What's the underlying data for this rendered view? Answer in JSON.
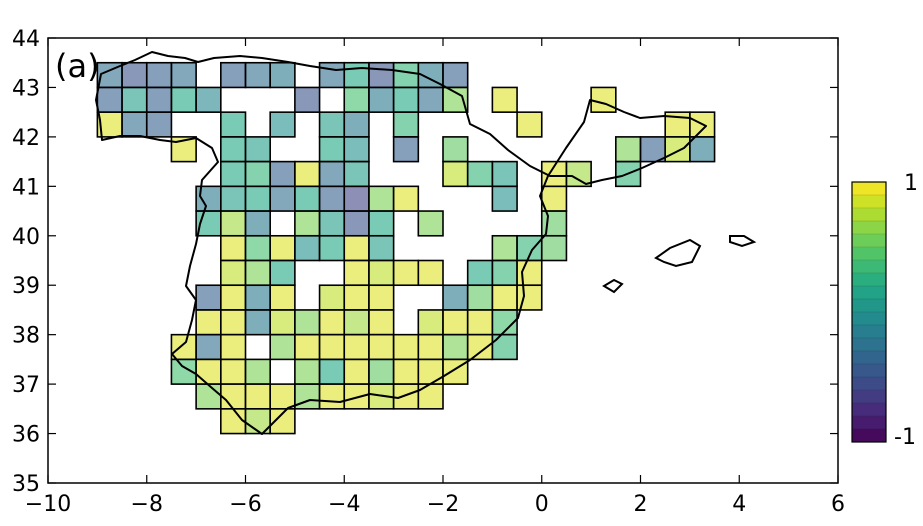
{
  "panel_label": "(a)",
  "chart_data": {
    "type": "heatmap",
    "title": "",
    "xlabel": "",
    "ylabel": "",
    "xlim": [
      -10,
      6
    ],
    "ylim": [
      35,
      44
    ],
    "xticks": [
      -10,
      -8,
      -6,
      -4,
      -2,
      0,
      2,
      4,
      6
    ],
    "xtick_labels": [
      "−10",
      "−8",
      "−6",
      "−4",
      "−2",
      "0",
      "2",
      "4",
      "6"
    ],
    "yticks": [
      35,
      36,
      37,
      38,
      39,
      40,
      41,
      42,
      43,
      44
    ],
    "ytick_labels": [
      "35",
      "36",
      "37",
      "38",
      "39",
      "40",
      "41",
      "42",
      "43",
      "44"
    ],
    "cell_size_deg": 0.5,
    "colormap": [
      "#440154",
      "#482475",
      "#414487",
      "#355f8d",
      "#2a788e",
      "#21918c",
      "#22a884",
      "#44bf70",
      "#7ad151",
      "#bddf26",
      "#fde725"
    ],
    "colorbar": {
      "vmin": -1,
      "vmax": 1,
      "tick_labels": [
        "-1",
        "1"
      ],
      "levels": 20
    },
    "grid": false,
    "cells": [
      {
        "lon": -8.75,
        "lat": 43.25,
        "value": -0.3
      },
      {
        "lon": -8.25,
        "lat": 43.25,
        "value": -0.5
      },
      {
        "lon": -7.75,
        "lat": 43.25,
        "value": -0.4
      },
      {
        "lon": -7.25,
        "lat": 43.25,
        "value": -0.3
      },
      {
        "lon": -6.25,
        "lat": 43.25,
        "value": -0.4
      },
      {
        "lon": -5.75,
        "lat": 43.25,
        "value": -0.3
      },
      {
        "lon": -5.25,
        "lat": 43.25,
        "value": -0.2
      },
      {
        "lon": -4.25,
        "lat": 43.25,
        "value": -0.3
      },
      {
        "lon": -3.75,
        "lat": 43.25,
        "value": 0.2
      },
      {
        "lon": -3.25,
        "lat": 43.25,
        "value": -0.5
      },
      {
        "lon": -2.75,
        "lat": 43.25,
        "value": 0.3
      },
      {
        "lon": -2.25,
        "lat": 43.25,
        "value": -0.2
      },
      {
        "lon": -1.75,
        "lat": 43.25,
        "value": -0.4
      },
      {
        "lon": -8.75,
        "lat": 42.75,
        "value": -0.4
      },
      {
        "lon": -8.25,
        "lat": 42.75,
        "value": 0.1
      },
      {
        "lon": -7.75,
        "lat": 42.75,
        "value": -0.4
      },
      {
        "lon": -7.25,
        "lat": 42.75,
        "value": 0.2
      },
      {
        "lon": -6.75,
        "lat": 42.75,
        "value": -0.1
      },
      {
        "lon": -4.75,
        "lat": 42.75,
        "value": -0.5
      },
      {
        "lon": -3.75,
        "lat": 42.75,
        "value": 0.4
      },
      {
        "lon": -3.25,
        "lat": 42.75,
        "value": -0.2
      },
      {
        "lon": -2.75,
        "lat": 42.75,
        "value": 0.2
      },
      {
        "lon": -2.25,
        "lat": 42.75,
        "value": -0.3
      },
      {
        "lon": -1.75,
        "lat": 42.75,
        "value": 0.6
      },
      {
        "lon": -0.75,
        "lat": 42.75,
        "value": 0.9
      },
      {
        "lon": 1.25,
        "lat": 42.75,
        "value": 0.9
      },
      {
        "lon": -8.75,
        "lat": 42.25,
        "value": 0.9
      },
      {
        "lon": -8.25,
        "lat": 42.25,
        "value": -0.3
      },
      {
        "lon": -7.75,
        "lat": 42.25,
        "value": -0.4
      },
      {
        "lon": -6.25,
        "lat": 42.25,
        "value": 0.2
      },
      {
        "lon": -5.25,
        "lat": 42.25,
        "value": 0.0
      },
      {
        "lon": -4.25,
        "lat": 42.25,
        "value": 0.1
      },
      {
        "lon": -3.75,
        "lat": 42.25,
        "value": -0.2
      },
      {
        "lon": -2.75,
        "lat": 42.25,
        "value": 0.3
      },
      {
        "lon": -0.25,
        "lat": 42.25,
        "value": 0.9
      },
      {
        "lon": 2.75,
        "lat": 42.25,
        "value": 0.9
      },
      {
        "lon": 3.25,
        "lat": 42.25,
        "value": 0.9
      },
      {
        "lon": -7.25,
        "lat": 41.75,
        "value": 0.9
      },
      {
        "lon": -6.25,
        "lat": 41.75,
        "value": 0.2
      },
      {
        "lon": -5.75,
        "lat": 41.75,
        "value": 0.1
      },
      {
        "lon": -4.25,
        "lat": 41.75,
        "value": 0.2
      },
      {
        "lon": -3.75,
        "lat": 41.75,
        "value": 0.0
      },
      {
        "lon": -2.75,
        "lat": 41.75,
        "value": -0.4
      },
      {
        "lon": -1.75,
        "lat": 41.75,
        "value": 0.5
      },
      {
        "lon": 1.75,
        "lat": 41.75,
        "value": 0.6
      },
      {
        "lon": 2.25,
        "lat": 41.75,
        "value": -0.4
      },
      {
        "lon": 2.75,
        "lat": 41.75,
        "value": 0.8
      },
      {
        "lon": 3.25,
        "lat": 41.75,
        "value": -0.2
      },
      {
        "lon": -6.25,
        "lat": 41.25,
        "value": 0.2
      },
      {
        "lon": -5.75,
        "lat": 41.25,
        "value": 0.3
      },
      {
        "lon": -5.25,
        "lat": 41.25,
        "value": -0.4
      },
      {
        "lon": -4.75,
        "lat": 41.25,
        "value": 0.9
      },
      {
        "lon": -4.25,
        "lat": 41.25,
        "value": -0.3
      },
      {
        "lon": -3.75,
        "lat": 41.25,
        "value": 0.1
      },
      {
        "lon": -1.75,
        "lat": 41.25,
        "value": 0.8
      },
      {
        "lon": -1.25,
        "lat": 41.25,
        "value": 0.3
      },
      {
        "lon": -0.75,
        "lat": 41.25,
        "value": 0.1
      },
      {
        "lon": 0.25,
        "lat": 41.25,
        "value": 0.9
      },
      {
        "lon": 0.75,
        "lat": 41.25,
        "value": 0.7
      },
      {
        "lon": 1.75,
        "lat": 41.25,
        "value": 0.3
      },
      {
        "lon": -6.75,
        "lat": 40.75,
        "value": -0.2
      },
      {
        "lon": -6.25,
        "lat": 40.75,
        "value": 0.1
      },
      {
        "lon": -5.75,
        "lat": 40.75,
        "value": 0.2
      },
      {
        "lon": -5.25,
        "lat": 40.75,
        "value": -0.3
      },
      {
        "lon": -4.75,
        "lat": 40.75,
        "value": 0.2
      },
      {
        "lon": -4.25,
        "lat": 40.75,
        "value": -0.4
      },
      {
        "lon": -3.75,
        "lat": 40.75,
        "value": -0.6
      },
      {
        "lon": -3.25,
        "lat": 40.75,
        "value": 0.6
      },
      {
        "lon": -2.75,
        "lat": 40.75,
        "value": 0.9
      },
      {
        "lon": -0.75,
        "lat": 40.75,
        "value": 0.0
      },
      {
        "lon": 0.25,
        "lat": 40.75,
        "value": 0.9
      },
      {
        "lon": -6.75,
        "lat": 40.25,
        "value": 0.2
      },
      {
        "lon": -6.25,
        "lat": 40.25,
        "value": 0.7
      },
      {
        "lon": -5.75,
        "lat": 40.25,
        "value": -0.2
      },
      {
        "lon": -4.75,
        "lat": 40.25,
        "value": 0.6
      },
      {
        "lon": -4.25,
        "lat": 40.25,
        "value": 0.1
      },
      {
        "lon": -3.75,
        "lat": 40.25,
        "value": -0.5
      },
      {
        "lon": -3.25,
        "lat": 40.25,
        "value": 0.2
      },
      {
        "lon": -2.25,
        "lat": 40.25,
        "value": 0.6
      },
      {
        "lon": 0.25,
        "lat": 40.25,
        "value": 0.5
      },
      {
        "lon": -6.25,
        "lat": 39.75,
        "value": 0.9
      },
      {
        "lon": -5.75,
        "lat": 39.75,
        "value": 0.4
      },
      {
        "lon": -5.25,
        "lat": 39.75,
        "value": 0.9
      },
      {
        "lon": -4.75,
        "lat": 39.75,
        "value": 0.0
      },
      {
        "lon": -4.25,
        "lat": 39.75,
        "value": 0.2
      },
      {
        "lon": -3.75,
        "lat": 39.75,
        "value": 0.9
      },
      {
        "lon": -3.25,
        "lat": 39.75,
        "value": 0.1
      },
      {
        "lon": -0.75,
        "lat": 39.75,
        "value": 0.6
      },
      {
        "lon": -0.25,
        "lat": 39.75,
        "value": 0.3
      },
      {
        "lon": 0.25,
        "lat": 39.75,
        "value": 0.5
      },
      {
        "lon": -6.25,
        "lat": 39.25,
        "value": 0.8
      },
      {
        "lon": -5.75,
        "lat": 39.25,
        "value": 0.6
      },
      {
        "lon": -5.25,
        "lat": 39.25,
        "value": 0.2
      },
      {
        "lon": -3.75,
        "lat": 39.25,
        "value": 0.9
      },
      {
        "lon": -3.25,
        "lat": 39.25,
        "value": 0.8
      },
      {
        "lon": -2.75,
        "lat": 39.25,
        "value": 0.9
      },
      {
        "lon": -2.25,
        "lat": 39.25,
        "value": 0.9
      },
      {
        "lon": -1.25,
        "lat": 39.25,
        "value": 0.2
      },
      {
        "lon": -0.75,
        "lat": 39.25,
        "value": 0.3
      },
      {
        "lon": -0.25,
        "lat": 39.25,
        "value": 0.9
      },
      {
        "lon": -6.75,
        "lat": 38.75,
        "value": -0.4
      },
      {
        "lon": -6.25,
        "lat": 38.75,
        "value": 0.9
      },
      {
        "lon": -5.75,
        "lat": 38.75,
        "value": -0.2
      },
      {
        "lon": -5.25,
        "lat": 38.75,
        "value": 0.9
      },
      {
        "lon": -4.25,
        "lat": 38.75,
        "value": 0.8
      },
      {
        "lon": -3.75,
        "lat": 38.75,
        "value": 0.9
      },
      {
        "lon": -3.25,
        "lat": 38.75,
        "value": 0.9
      },
      {
        "lon": -1.75,
        "lat": 38.75,
        "value": -0.2
      },
      {
        "lon": -1.25,
        "lat": 38.75,
        "value": 0.5
      },
      {
        "lon": -0.75,
        "lat": 38.75,
        "value": 0.9
      },
      {
        "lon": -0.25,
        "lat": 38.75,
        "value": 0.9
      },
      {
        "lon": -6.75,
        "lat": 38.25,
        "value": 0.9
      },
      {
        "lon": -6.25,
        "lat": 38.25,
        "value": 0.9
      },
      {
        "lon": -5.75,
        "lat": 38.25,
        "value": -0.2
      },
      {
        "lon": -5.25,
        "lat": 38.25,
        "value": 0.8
      },
      {
        "lon": -4.75,
        "lat": 38.25,
        "value": 0.6
      },
      {
        "lon": -4.25,
        "lat": 38.25,
        "value": 0.9
      },
      {
        "lon": -3.75,
        "lat": 38.25,
        "value": 0.7
      },
      {
        "lon": -3.25,
        "lat": 38.25,
        "value": 0.9
      },
      {
        "lon": -2.25,
        "lat": 38.25,
        "value": 0.8
      },
      {
        "lon": -1.75,
        "lat": 38.25,
        "value": 0.9
      },
      {
        "lon": -1.25,
        "lat": 38.25,
        "value": 0.9
      },
      {
        "lon": -0.75,
        "lat": 38.25,
        "value": 0.4
      },
      {
        "lon": -7.25,
        "lat": 37.75,
        "value": 0.9
      },
      {
        "lon": -6.75,
        "lat": 37.75,
        "value": -0.3
      },
      {
        "lon": -6.25,
        "lat": 37.75,
        "value": 0.9
      },
      {
        "lon": -5.25,
        "lat": 37.75,
        "value": 0.6
      },
      {
        "lon": -4.75,
        "lat": 37.75,
        "value": 0.9
      },
      {
        "lon": -4.25,
        "lat": 37.75,
        "value": 0.9
      },
      {
        "lon": -3.75,
        "lat": 37.75,
        "value": 0.9
      },
      {
        "lon": -3.25,
        "lat": 37.75,
        "value": 0.9
      },
      {
        "lon": -2.75,
        "lat": 37.75,
        "value": 0.9
      },
      {
        "lon": -2.25,
        "lat": 37.75,
        "value": 0.9
      },
      {
        "lon": -1.75,
        "lat": 37.75,
        "value": 0.6
      },
      {
        "lon": -1.25,
        "lat": 37.75,
        "value": 0.9
      },
      {
        "lon": -0.75,
        "lat": 37.75,
        "value": 0.3
      },
      {
        "lon": -7.25,
        "lat": 37.25,
        "value": 0.4
      },
      {
        "lon": -6.75,
        "lat": 37.25,
        "value": 0.9
      },
      {
        "lon": -6.25,
        "lat": 37.25,
        "value": 0.9
      },
      {
        "lon": -5.75,
        "lat": 37.25,
        "value": 0.6
      },
      {
        "lon": -4.75,
        "lat": 37.25,
        "value": 0.6
      },
      {
        "lon": -4.25,
        "lat": 37.25,
        "value": 0.2
      },
      {
        "lon": -3.75,
        "lat": 37.25,
        "value": 0.9
      },
      {
        "lon": -3.25,
        "lat": 37.25,
        "value": 0.5
      },
      {
        "lon": -2.75,
        "lat": 37.25,
        "value": 0.9
      },
      {
        "lon": -2.25,
        "lat": 37.25,
        "value": 0.9
      },
      {
        "lon": -1.75,
        "lat": 37.25,
        "value": 0.9
      },
      {
        "lon": -6.75,
        "lat": 36.75,
        "value": 0.6
      },
      {
        "lon": -6.25,
        "lat": 36.75,
        "value": 0.9
      },
      {
        "lon": -5.75,
        "lat": 36.75,
        "value": 0.9
      },
      {
        "lon": -5.25,
        "lat": 36.75,
        "value": 0.9
      },
      {
        "lon": -4.75,
        "lat": 36.75,
        "value": 0.6
      },
      {
        "lon": -4.25,
        "lat": 36.75,
        "value": 0.9
      },
      {
        "lon": -3.75,
        "lat": 36.75,
        "value": 0.9
      },
      {
        "lon": -3.25,
        "lat": 36.75,
        "value": 0.8
      },
      {
        "lon": -2.75,
        "lat": 36.75,
        "value": 0.9
      },
      {
        "lon": -2.25,
        "lat": 36.75,
        "value": 0.9
      },
      {
        "lon": -6.25,
        "lat": 36.25,
        "value": 0.9
      },
      {
        "lon": -5.75,
        "lat": 36.25,
        "value": 0.7
      },
      {
        "lon": -5.25,
        "lat": 36.25,
        "value": 0.9
      }
    ]
  }
}
